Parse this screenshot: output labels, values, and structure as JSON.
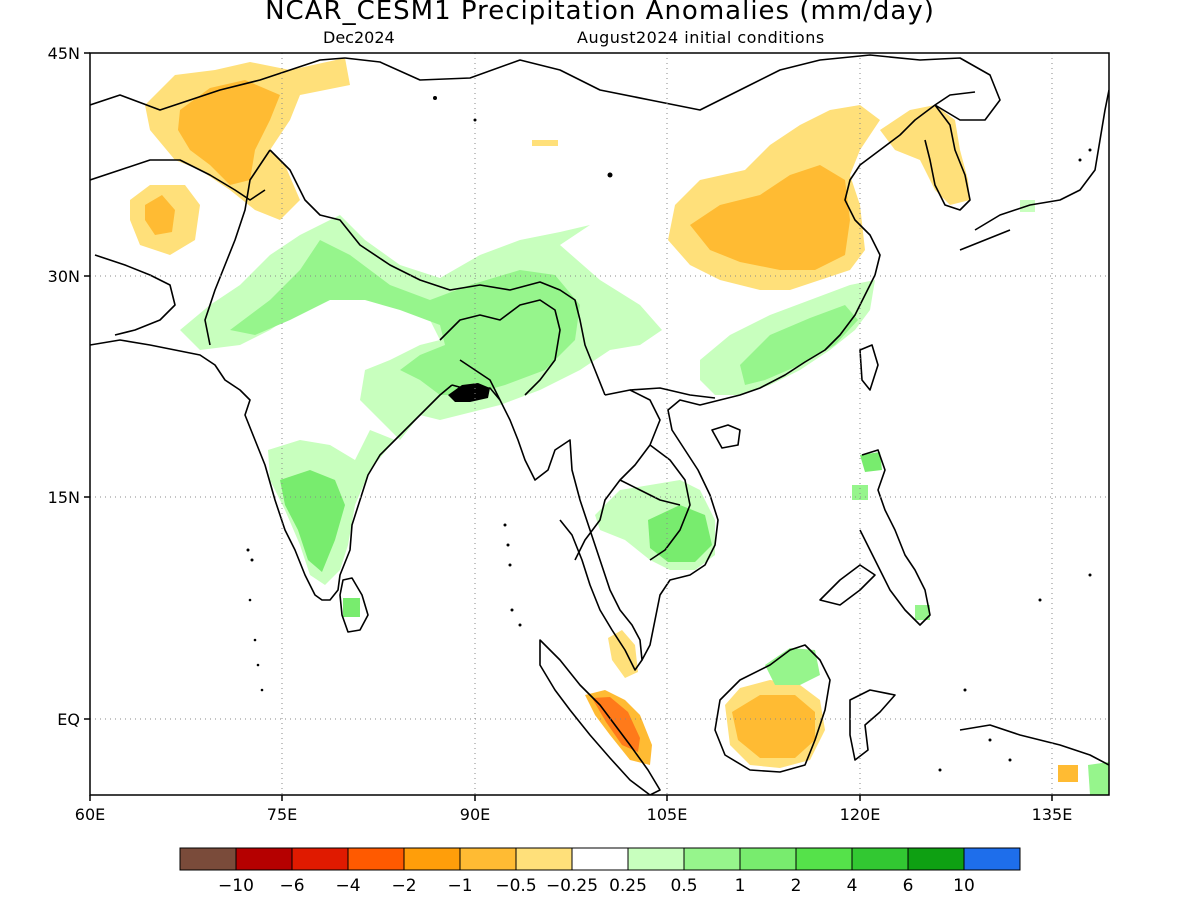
{
  "title": "NCAR_CESM1 Precipitation Anomalies (mm/day)",
  "subtitle_left": "Dec2024",
  "subtitle_right": "August2024 initial conditions",
  "axes": {
    "lat_ticks": [
      "45N",
      "30N",
      "15N",
      "EQ"
    ],
    "lon_ticks": [
      "60E",
      "75E",
      "90E",
      "105E",
      "120E",
      "135E"
    ],
    "grid": "dotted"
  },
  "colorbar": {
    "colors": [
      "#7a4b3a",
      "#b50000",
      "#e01a00",
      "#ff5a00",
      "#ff9e0a",
      "#ffbb33",
      "#ffe07a",
      "#ffffff",
      "#c8ffbe",
      "#96f58c",
      "#78ec6e",
      "#55e24a",
      "#32c832",
      "#0ea012",
      "#1e6eeb"
    ],
    "labels": [
      "-10",
      "-6",
      "-4",
      "-2",
      "-1",
      "-0.5",
      "-0.25",
      "0.25",
      "0.5",
      "1",
      "2",
      "4",
      "6",
      "10"
    ]
  },
  "regions": [
    {
      "name": "north-pakistan-dry",
      "class": "dry-light"
    },
    {
      "name": "north-pakistan-dry-core",
      "class": "dry-mid"
    },
    {
      "name": "afghanistan-dry",
      "class": "dry-light"
    },
    {
      "name": "afghanistan-dry-core",
      "class": "dry-mid"
    },
    {
      "name": "north-china-dry",
      "class": "dry-light"
    },
    {
      "name": "north-china-dry-core",
      "class": "dry-mid"
    },
    {
      "name": "korea-dry",
      "class": "dry-light"
    },
    {
      "name": "borneo-dry",
      "class": "dry-light"
    },
    {
      "name": "borneo-dry-core",
      "class": "dry-mid"
    },
    {
      "name": "sumatra-dry",
      "class": "dry-mid"
    },
    {
      "name": "sumatra-dry-core",
      "class": "dry-strong"
    },
    {
      "name": "malaya-dry",
      "class": "dry-light"
    },
    {
      "name": "himalaya-wet",
      "class": "wet-light"
    },
    {
      "name": "himalaya-wet-core",
      "class": "wet-mid"
    },
    {
      "name": "south-india-wet",
      "class": "wet-light"
    },
    {
      "name": "south-india-wet-core",
      "class": "wet-mid"
    },
    {
      "name": "south-china-wet",
      "class": "wet-light"
    },
    {
      "name": "south-china-wet-core",
      "class": "wet-mid"
    },
    {
      "name": "indochina-wet",
      "class": "wet-light"
    },
    {
      "name": "indochina-wet-core",
      "class": "wet-mid"
    },
    {
      "name": "borneo-north-wet",
      "class": "wet-light"
    }
  ]
}
